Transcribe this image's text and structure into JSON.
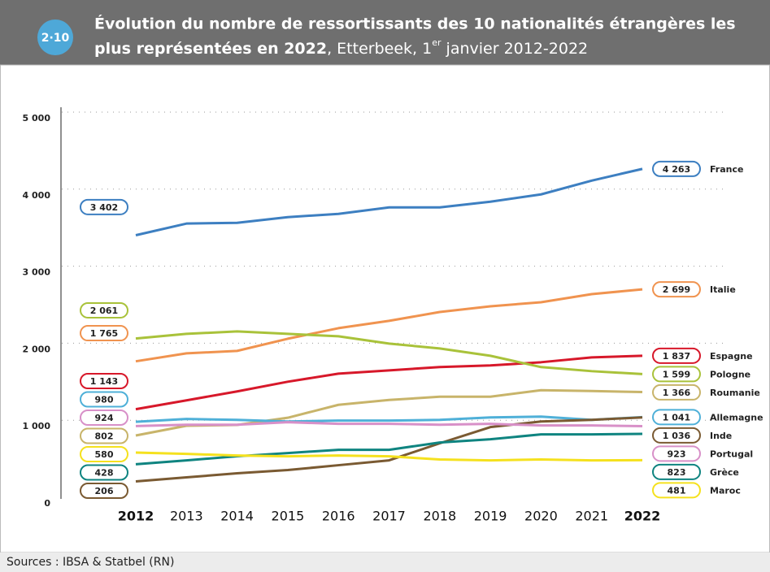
{
  "badge": "2·10",
  "source": "Sources : IBSA & Statbel (RN)",
  "chart_data": {
    "type": "line",
    "title": [
      "Évolution du nombre de ressortissants des 10 nationalités étrangères les",
      "plus représentées en 2022"
    ],
    "subtitle": [
      ", Etterbeek, 1",
      "er",
      " janvier 2012-2022"
    ],
    "categories": [
      "2012",
      "2013",
      "2014",
      "2015",
      "2016",
      "2017",
      "2018",
      "2019",
      "2020",
      "2021",
      "2022"
    ],
    "bold_categories": [
      0,
      10
    ],
    "ylim": [
      0,
      5000
    ],
    "yticks": [
      0,
      {
        "value": 1000,
        "label": "1 000"
      },
      {
        "value": 2000,
        "label": "2 000"
      },
      {
        "value": 3000,
        "label": "3 000"
      },
      {
        "value": 4000,
        "label": "4 000"
      },
      {
        "value": 5000,
        "label": "5 000"
      }
    ],
    "grid": true,
    "series": [
      {
        "name": "France",
        "color": "#3d7fc1",
        "values": [
          3402,
          3553,
          3563,
          3637,
          3679,
          3763,
          3763,
          3837,
          3932,
          4111,
          4263
        ],
        "value_labels": [
          "3 402",
          null,
          null,
          null,
          null,
          null,
          null,
          null,
          null,
          null,
          "4 263"
        ]
      },
      {
        "name": "Italie",
        "color": "#f0934f",
        "values": [
          1765,
          1868,
          1900,
          2058,
          2195,
          2290,
          2405,
          2479,
          2532,
          2637,
          2699
        ],
        "value_labels": [
          "1 765",
          null,
          null,
          null,
          null,
          null,
          null,
          null,
          null,
          null,
          "2 699"
        ]
      },
      {
        "name": "Espagne",
        "color": "#d7182a",
        "values": [
          1143,
          1258,
          1374,
          1500,
          1605,
          1647,
          1690,
          1711,
          1753,
          1816,
          1837
        ],
        "value_labels": [
          "1 143",
          null,
          null,
          null,
          null,
          null,
          null,
          null,
          null,
          null,
          "1 837"
        ]
      },
      {
        "name": "Pologne",
        "color": "#a9c23a",
        "values": [
          2061,
          2121,
          2153,
          2121,
          2090,
          1995,
          1932,
          1837,
          1690,
          1637,
          1599
        ],
        "value_labels": [
          "2 061",
          null,
          null,
          null,
          null,
          null,
          null,
          null,
          null,
          null,
          "1 599"
        ]
      },
      {
        "name": "Roumanie",
        "color": "#c8b46a",
        "values": [
          802,
          928,
          939,
          1032,
          1200,
          1263,
          1305,
          1305,
          1390,
          1379,
          1366
        ],
        "value_labels": [
          "802",
          null,
          null,
          null,
          null,
          null,
          null,
          null,
          null,
          null,
          "1 366"
        ]
      },
      {
        "name": "Allemagne",
        "color": "#4fb0d8",
        "values": [
          980,
          1016,
          1005,
          984,
          995,
          995,
          1005,
          1037,
          1047,
          1005,
          1041
        ],
        "value_labels": [
          "980",
          null,
          null,
          null,
          null,
          null,
          null,
          null,
          null,
          null,
          "1 041"
        ]
      },
      {
        "name": "Inde",
        "color": "#7a5a32",
        "values": [
          206,
          258,
          311,
          353,
          416,
          479,
          700,
          911,
          984,
          1005,
          1036
        ],
        "value_labels": [
          "206",
          null,
          null,
          null,
          null,
          null,
          null,
          null,
          null,
          null,
          "1 036"
        ]
      },
      {
        "name": "Portugal",
        "color": "#d890c8",
        "values": [
          924,
          942,
          942,
          974,
          953,
          953,
          942,
          953,
          932,
          932,
          923
        ],
        "value_labels": [
          "924",
          null,
          null,
          null,
          null,
          null,
          null,
          null,
          null,
          null,
          "923"
        ]
      },
      {
        "name": "Grèce",
        "color": "#0f8480",
        "values": [
          428,
          479,
          532,
          574,
          616,
          616,
          711,
          753,
          816,
          816,
          823
        ],
        "value_labels": [
          "428",
          null,
          null,
          null,
          null,
          null,
          null,
          null,
          null,
          null,
          "823"
        ]
      },
      {
        "name": "Maroc",
        "color": "#f5e11e",
        "values": [
          580,
          563,
          542,
          532,
          542,
          532,
          490,
          479,
          490,
          479,
          481
        ],
        "value_labels": [
          "580",
          null,
          null,
          null,
          null,
          null,
          null,
          null,
          null,
          null,
          "481"
        ]
      }
    ]
  }
}
